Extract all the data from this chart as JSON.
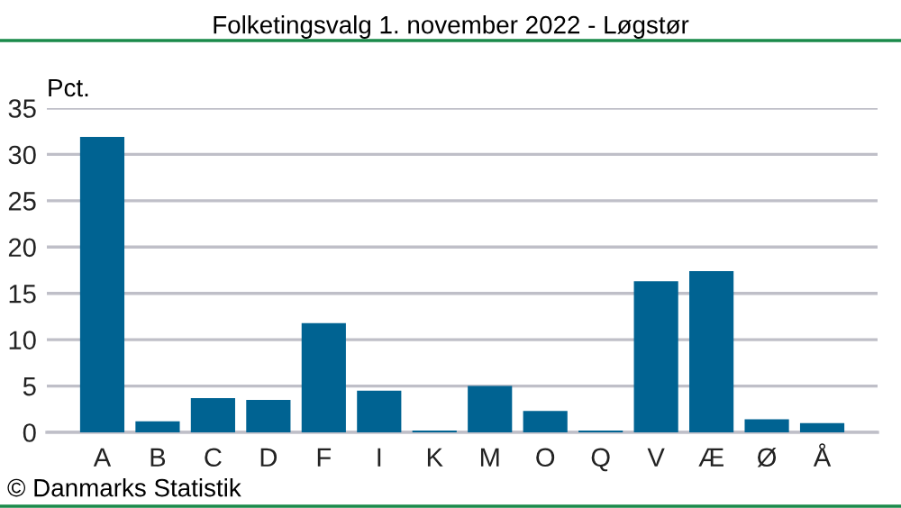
{
  "chart_data": {
    "type": "bar",
    "title": "Folketingsvalg 1. november 2022 - Løgstør",
    "ylabel": "Pct.",
    "categories": [
      "A",
      "B",
      "C",
      "D",
      "F",
      "I",
      "K",
      "M",
      "O",
      "Q",
      "V",
      "Æ",
      "Ø",
      "Å"
    ],
    "values": [
      31.9,
      1.2,
      3.7,
      3.5,
      11.8,
      4.5,
      0.2,
      5.0,
      2.3,
      0.2,
      16.3,
      17.4,
      1.4,
      1.0
    ],
    "color": "#006392",
    "ylim": [
      0,
      35
    ],
    "yticks": [
      0,
      5,
      10,
      15,
      20,
      25,
      30,
      35
    ],
    "grid": "y",
    "annotations": [
      "© Danmarks Statistik"
    ]
  }
}
